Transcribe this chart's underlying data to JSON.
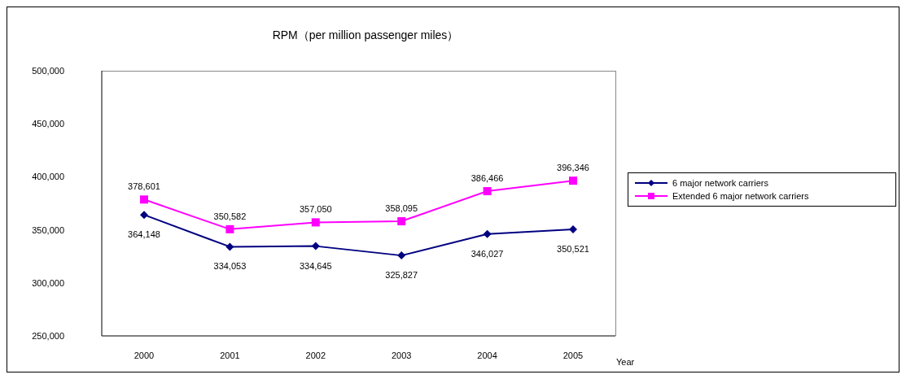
{
  "chart_data": {
    "type": "line",
    "title": "RPM（per million passenger miles）",
    "xlabel": "Year",
    "categories": [
      "2000",
      "2001",
      "2002",
      "2003",
      "2004",
      "2005"
    ],
    "series": [
      {
        "name": "6 major network carriers",
        "color": "#000080",
        "marker": "diamond",
        "values": [
          364148,
          334053,
          334645,
          325827,
          346027,
          350521
        ],
        "value_labels": [
          "364,148",
          "334,053",
          "334,645",
          "325,827",
          "346,027",
          "350,521"
        ]
      },
      {
        "name": "Extended 6 major network carriers",
        "color": "#ff00ff",
        "marker": "square",
        "values": [
          378601,
          350582,
          357050,
          358095,
          386466,
          396346
        ],
        "value_labels": [
          "378,601",
          "350,582",
          "357,050",
          "358,095",
          "386,466",
          "396,346"
        ]
      }
    ],
    "ylim": [
      250000,
      500000
    ],
    "yticks": [
      {
        "value": 250000,
        "label": "250,000"
      },
      {
        "value": 300000,
        "label": "300,000"
      },
      {
        "value": 350000,
        "label": "350,000"
      },
      {
        "value": 400000,
        "label": "400,000"
      },
      {
        "value": 450000,
        "label": "450,000"
      },
      {
        "value": 500000,
        "label": "500,000"
      }
    ],
    "grid": false,
    "legend": "right",
    "line_style": "solid"
  }
}
